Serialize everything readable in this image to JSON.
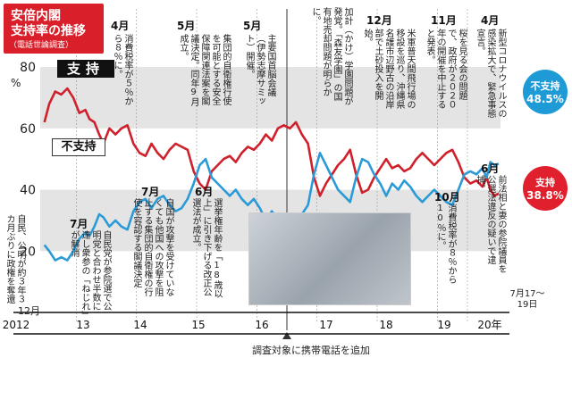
{
  "header": {
    "title_line1": "安倍内閣",
    "title_line2": "支持率の推移",
    "subtitle": "（電話世論調査）"
  },
  "labels": {
    "support": "支持",
    "nonsupport": "不支持",
    "bottom_note": "調査対象に携帯電話を追加",
    "start_month": "12月",
    "end_period": "7月17～19日"
  },
  "end_badges": {
    "nonsupport_name": "不支持",
    "nonsupport_value": "48.5%",
    "support_name": "支持",
    "support_value": "38.8%"
  },
  "colors": {
    "support": "#d0202b",
    "nonsupport": "#2b9bd8",
    "band": "#e4e4e4",
    "badge_support": "#e0202c",
    "badge_nonsupport": "#1e9ad6"
  },
  "annotations": {
    "a2012_12": "自民、公明が約３年３カ月ぶりに政権を奪還",
    "a2013_4_m": "4月",
    "a2013_4": "消費税率が５％から８％に。",
    "a2013_7_m": "7月",
    "a2013_7": "自民党が参院選で公明党と合わせ半数に達し衆参の「ねじれ」が解消",
    "a2014_5_m": "5月",
    "a2014_5": "集団的自衛権行使を可能とする安全保障関連法案を閣議決定。同年9月成立。",
    "a2014_7_m": "7月",
    "a2014_7": "自国が攻撃を受けていなくても他国への攻撃を阻止する集団的自衛権の行使を容認する閣議決定",
    "a2016_5_m": "5月",
    "a2016_5": "主要国首脳会議（伊勢志摩サミット）開催。",
    "a2015_6_m": "6月",
    "a2015_6": "選挙権年齢を「18歳以上」に引き下げる改正公選法が成立。",
    "a2017_m": "",
    "a2017": "加計（かけ）学園問題が発覚。「森友学園」の国有地売却問題が明らかに。",
    "a2017_12_m": "12月",
    "a2017_12": "米軍普天間飛行場の移設を巡り、沖縄県名護市辺野古の沿岸部で土砂投入を開始。",
    "a2019_11_m": "11月",
    "a2019_11": "桜を見る会の問題で、政府が２０２０年の開催を中止すると発表。",
    "a2019_10_m": "10月",
    "a2019_10": "消費税率が８％から10％に。",
    "a2020_4_m": "4月",
    "a2020_4": "新型コロナウイルスの感染拡大で、緊急事態宣言。",
    "a2020_6_m": "6月",
    "a2020_6": "前法相と妻の参院議員を公選法違反の疑いで逮捕。"
  },
  "chart_data": {
    "type": "line",
    "title": "安倍内閣 支持率の推移",
    "subtitle": "（電話世論調査）",
    "yunit": "%",
    "ylim": [
      0,
      80
    ],
    "yticks": [
      0,
      20,
      40,
      60,
      80
    ],
    "x_year_labels": [
      "2012",
      "13",
      "14",
      "15",
      "16",
      "17",
      "18",
      "19",
      "20年"
    ],
    "xlim": [
      2012.9,
      2020.55
    ],
    "series": [
      {
        "name": "支持",
        "end_value": 38.8,
        "points": [
          [
            2012.97,
            62
          ],
          [
            2013.05,
            68
          ],
          [
            2013.15,
            72
          ],
          [
            2013.25,
            71
          ],
          [
            2013.35,
            73
          ],
          [
            2013.45,
            70
          ],
          [
            2013.55,
            65
          ],
          [
            2013.65,
            66
          ],
          [
            2013.72,
            63
          ],
          [
            2013.8,
            62
          ],
          [
            2013.88,
            58
          ],
          [
            2013.95,
            55
          ],
          [
            2014.05,
            60
          ],
          [
            2014.15,
            58
          ],
          [
            2014.25,
            60
          ],
          [
            2014.35,
            61
          ],
          [
            2014.45,
            55
          ],
          [
            2014.55,
            52
          ],
          [
            2014.65,
            51
          ],
          [
            2014.75,
            55
          ],
          [
            2014.85,
            52
          ],
          [
            2014.95,
            50
          ],
          [
            2015.05,
            53
          ],
          [
            2015.15,
            55
          ],
          [
            2015.25,
            54
          ],
          [
            2015.35,
            53
          ],
          [
            2015.45,
            46
          ],
          [
            2015.55,
            42
          ],
          [
            2015.65,
            40
          ],
          [
            2015.75,
            46
          ],
          [
            2015.85,
            48
          ],
          [
            2015.95,
            50
          ],
          [
            2016.05,
            51
          ],
          [
            2016.15,
            49
          ],
          [
            2016.25,
            52
          ],
          [
            2016.35,
            54
          ],
          [
            2016.45,
            53
          ],
          [
            2016.55,
            55
          ],
          [
            2016.65,
            58
          ],
          [
            2016.75,
            56
          ],
          [
            2016.85,
            60
          ],
          [
            2016.95,
            61
          ],
          [
            2017.05,
            60
          ],
          [
            2017.15,
            62
          ],
          [
            2017.25,
            58
          ],
          [
            2017.35,
            55
          ],
          [
            2017.45,
            44
          ],
          [
            2017.55,
            38
          ],
          [
            2017.65,
            42
          ],
          [
            2017.75,
            45
          ],
          [
            2017.85,
            48
          ],
          [
            2017.95,
            50
          ],
          [
            2018.05,
            53
          ],
          [
            2018.15,
            45
          ],
          [
            2018.25,
            39
          ],
          [
            2018.35,
            40
          ],
          [
            2018.45,
            44
          ],
          [
            2018.55,
            47
          ],
          [
            2018.65,
            50
          ],
          [
            2018.75,
            47
          ],
          [
            2018.85,
            48
          ],
          [
            2018.95,
            46
          ],
          [
            2019.05,
            47
          ],
          [
            2019.15,
            50
          ],
          [
            2019.25,
            52
          ],
          [
            2019.35,
            50
          ],
          [
            2019.45,
            48
          ],
          [
            2019.55,
            50
          ],
          [
            2019.65,
            52
          ],
          [
            2019.75,
            53
          ],
          [
            2019.85,
            49
          ],
          [
            2019.95,
            44
          ],
          [
            2020.05,
            42
          ],
          [
            2020.15,
            43
          ],
          [
            2020.25,
            41
          ],
          [
            2020.32,
            44
          ],
          [
            2020.38,
            40
          ],
          [
            2020.45,
            38
          ],
          [
            2020.52,
            38.8
          ]
        ]
      },
      {
        "name": "不支持",
        "end_value": 48.5,
        "points": [
          [
            2012.97,
            22
          ],
          [
            2013.05,
            20
          ],
          [
            2013.15,
            17
          ],
          [
            2013.25,
            18
          ],
          [
            2013.35,
            17
          ],
          [
            2013.45,
            20
          ],
          [
            2013.55,
            24
          ],
          [
            2013.65,
            26
          ],
          [
            2013.72,
            25
          ],
          [
            2013.8,
            28
          ],
          [
            2013.88,
            32
          ],
          [
            2013.95,
            31
          ],
          [
            2014.05,
            28
          ],
          [
            2014.15,
            30
          ],
          [
            2014.25,
            28
          ],
          [
            2014.35,
            27
          ],
          [
            2014.45,
            33
          ],
          [
            2014.55,
            36
          ],
          [
            2014.65,
            37
          ],
          [
            2014.75,
            34
          ],
          [
            2014.85,
            37
          ],
          [
            2014.95,
            38
          ],
          [
            2015.05,
            35
          ],
          [
            2015.15,
            33
          ],
          [
            2015.25,
            34
          ],
          [
            2015.35,
            37
          ],
          [
            2015.45,
            42
          ],
          [
            2015.55,
            48
          ],
          [
            2015.65,
            50
          ],
          [
            2015.75,
            44
          ],
          [
            2015.85,
            42
          ],
          [
            2015.95,
            40
          ],
          [
            2016.05,
            38
          ],
          [
            2016.15,
            40
          ],
          [
            2016.25,
            37
          ],
          [
            2016.35,
            35
          ],
          [
            2016.45,
            37
          ],
          [
            2016.55,
            34
          ],
          [
            2016.65,
            30
          ],
          [
            2016.75,
            33
          ],
          [
            2016.85,
            30
          ],
          [
            2016.95,
            29
          ],
          [
            2017.05,
            30
          ],
          [
            2017.15,
            28
          ],
          [
            2017.25,
            32
          ],
          [
            2017.35,
            35
          ],
          [
            2017.45,
            45
          ],
          [
            2017.55,
            52
          ],
          [
            2017.65,
            48
          ],
          [
            2017.75,
            44
          ],
          [
            2017.85,
            40
          ],
          [
            2017.95,
            38
          ],
          [
            2018.05,
            36
          ],
          [
            2018.15,
            44
          ],
          [
            2018.25,
            50
          ],
          [
            2018.35,
            49
          ],
          [
            2018.45,
            45
          ],
          [
            2018.55,
            42
          ],
          [
            2018.65,
            38
          ],
          [
            2018.75,
            42
          ],
          [
            2018.85,
            40
          ],
          [
            2018.95,
            43
          ],
          [
            2019.05,
            41
          ],
          [
            2019.15,
            38
          ],
          [
            2019.25,
            36
          ],
          [
            2019.35,
            38
          ],
          [
            2019.45,
            40
          ],
          [
            2019.55,
            38
          ],
          [
            2019.65,
            36
          ],
          [
            2019.75,
            35
          ],
          [
            2019.85,
            40
          ],
          [
            2019.95,
            45
          ],
          [
            2020.05,
            46
          ],
          [
            2020.15,
            45
          ],
          [
            2020.25,
            47
          ],
          [
            2020.32,
            44
          ],
          [
            2020.38,
            49
          ],
          [
            2020.45,
            48
          ],
          [
            2020.52,
            48.5
          ]
        ]
      }
    ]
  }
}
